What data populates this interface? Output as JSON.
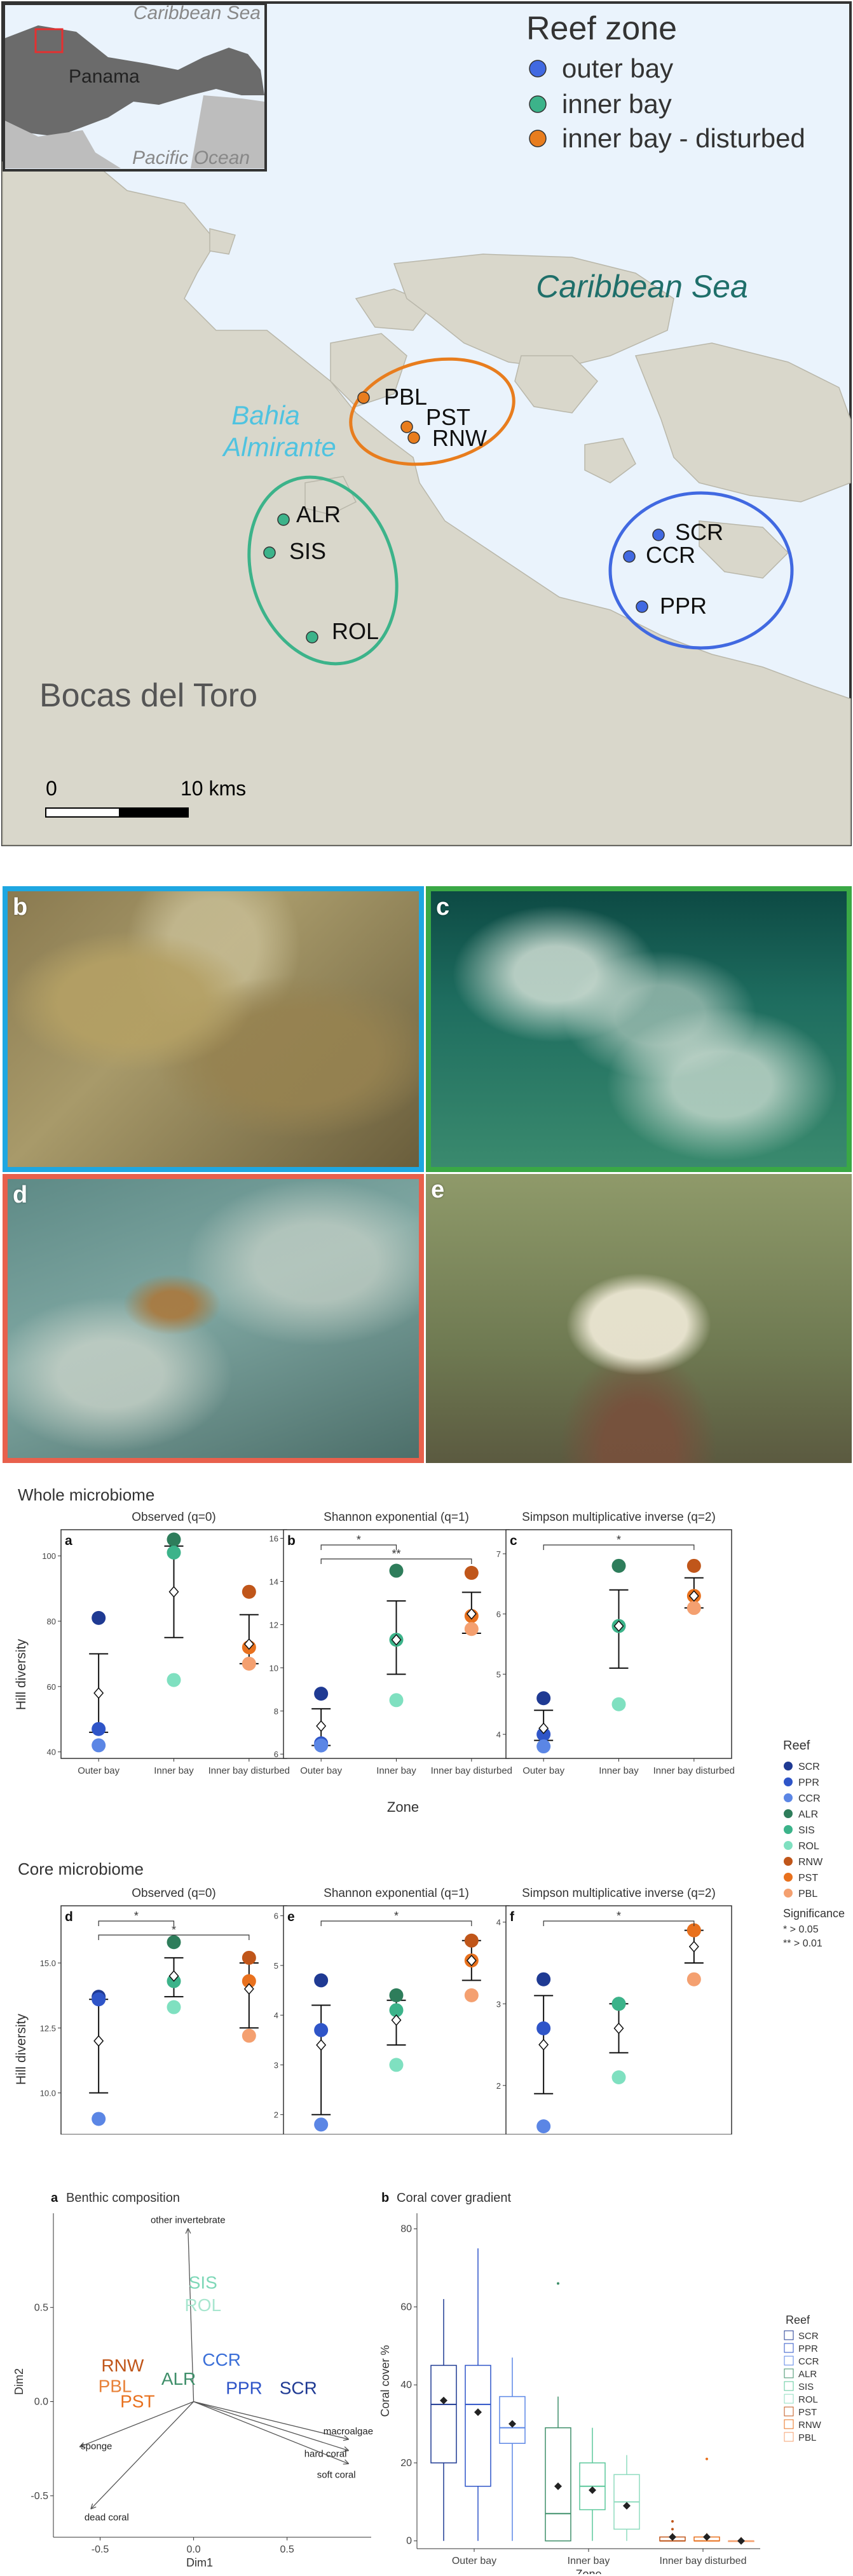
{
  "map": {
    "inset": {
      "sea_top": "Caribbean Sea",
      "country": "Panama",
      "sea_bottom": "Pacific Ocean"
    },
    "legend": {
      "title": "Reef zone",
      "items": [
        {
          "label": "outer bay",
          "color": "#4169e1"
        },
        {
          "label": "inner bay",
          "color": "#3cb38a"
        },
        {
          "label": "inner bay - disturbed",
          "color": "#e87d1e"
        }
      ]
    },
    "labels": {
      "sea": "Caribbean Sea",
      "bahia_1": "Bahia",
      "bahia_2": "Almirante",
      "region": "Bocas del Toro",
      "scale_zero": "0",
      "scale_dist": "10 kms"
    },
    "sites": [
      {
        "code": "PBL",
        "zone": "inner bay - disturbed"
      },
      {
        "code": "PST",
        "zone": "inner bay - disturbed"
      },
      {
        "code": "RNW",
        "zone": "inner bay - disturbed"
      },
      {
        "code": "ALR",
        "zone": "inner bay"
      },
      {
        "code": "SIS",
        "zone": "inner bay"
      },
      {
        "code": "ROL",
        "zone": "inner bay"
      },
      {
        "code": "SCR",
        "zone": "outer bay"
      },
      {
        "code": "CCR",
        "zone": "outer bay"
      },
      {
        "code": "PPR",
        "zone": "outer bay"
      }
    ]
  },
  "photos": {
    "b": {
      "letter": "b",
      "frame_color": "#1ea7e1"
    },
    "c": {
      "letter": "c",
      "frame_color": "#3aa845"
    },
    "d": {
      "letter": "d",
      "frame_color": "#e8604c"
    },
    "e": {
      "letter": "e",
      "frame_color": "#ffffff"
    }
  },
  "diversity": {
    "whole_title": "Whole microbiome",
    "core_title": "Core microbiome",
    "ylabel": "Hill diversity",
    "xlabel": "Zone",
    "zones": [
      "Outer bay",
      "Inner bay",
      "Inner bay disturbed"
    ],
    "legend": {
      "title": "Reef",
      "items": [
        {
          "code": "SCR",
          "color": "#1f3a93"
        },
        {
          "code": "PPR",
          "color": "#2f55c8"
        },
        {
          "code": "CCR",
          "color": "#5b86e5"
        },
        {
          "code": "ALR",
          "color": "#2e7d5b"
        },
        {
          "code": "SIS",
          "color": "#3cb38a"
        },
        {
          "code": "ROL",
          "color": "#7fe0c0"
        },
        {
          "code": "RNW",
          "color": "#c0561a"
        },
        {
          "code": "PST",
          "color": "#e8711e"
        },
        {
          "code": "PBL",
          "color": "#f4a070"
        }
      ],
      "significance_title": "Significance",
      "sig1": "*   > 0.05",
      "sig2": "** > 0.01"
    }
  },
  "chart_data": [
    {
      "type": "scatter",
      "panel": "a",
      "group": "Whole microbiome",
      "title": "Observed (q=0)",
      "categories": [
        "Outer bay",
        "Inner bay",
        "Inner bay disturbed"
      ],
      "ylim": [
        38,
        108
      ],
      "yticks": [
        40,
        60,
        80,
        100
      ],
      "points": [
        [
          81,
          47,
          42
        ],
        [
          105,
          101,
          62
        ],
        [
          89,
          72,
          67
        ]
      ],
      "mean": [
        58,
        89,
        73
      ],
      "err_low": [
        46,
        75,
        67
      ],
      "err_high": [
        70,
        103,
        82
      ],
      "significance": []
    },
    {
      "type": "scatter",
      "panel": "b",
      "group": "Whole microbiome",
      "title": "Shannon exponential (q=1)",
      "categories": [
        "Outer bay",
        "Inner bay",
        "Inner bay disturbed"
      ],
      "ylim": [
        5.8,
        16.4
      ],
      "yticks": [
        6,
        8,
        10,
        12,
        14,
        16
      ],
      "points": [
        [
          8.8,
          6.5,
          6.4
        ],
        [
          14.5,
          11.3,
          8.5
        ],
        [
          14.4,
          12.4,
          11.8
        ]
      ],
      "mean": [
        7.3,
        11.3,
        12.5
      ],
      "err_low": [
        6.4,
        9.7,
        11.6
      ],
      "err_high": [
        8.1,
        13.1,
        13.5
      ],
      "significance": [
        {
          "from": 0,
          "to": 1,
          "label": "*"
        },
        {
          "from": 0,
          "to": 2,
          "label": "**"
        }
      ]
    },
    {
      "type": "scatter",
      "panel": "c",
      "group": "Whole microbiome",
      "title": "Simpson multiplicative inverse (q=2)",
      "categories": [
        "Outer bay",
        "Inner bay",
        "Inner bay disturbed"
      ],
      "ylim": [
        3.6,
        7.4
      ],
      "yticks": [
        4,
        5,
        6,
        7
      ],
      "points": [
        [
          4.6,
          4.0,
          3.8
        ],
        [
          6.8,
          5.8,
          4.5
        ],
        [
          6.8,
          6.3,
          6.1
        ]
      ],
      "mean": [
        4.1,
        5.8,
        6.3
      ],
      "err_low": [
        3.9,
        5.1,
        6.1
      ],
      "err_high": [
        4.4,
        6.4,
        6.6
      ],
      "significance": [
        {
          "from": 0,
          "to": 2,
          "label": "*"
        }
      ]
    },
    {
      "type": "scatter",
      "panel": "d",
      "group": "Core microbiome",
      "title": "Observed (q=0)",
      "categories": [
        "Outer bay",
        "Inner bay",
        "Inner bay disturbed"
      ],
      "ylim": [
        8.4,
        17.2
      ],
      "yticks": [
        10.0,
        12.5,
        15.0
      ],
      "points": [
        [
          13.7,
          13.6,
          9.0
        ],
        [
          15.8,
          14.3,
          13.3
        ],
        [
          15.2,
          14.3,
          12.2
        ]
      ],
      "mean": [
        12.0,
        14.5,
        14.0
      ],
      "err_low": [
        10.0,
        13.7,
        12.5
      ],
      "err_high": [
        13.6,
        15.2,
        15.0
      ],
      "significance": [
        {
          "from": 0,
          "to": 1,
          "label": "*"
        },
        {
          "from": 0,
          "to": 2,
          "label": "*"
        }
      ]
    },
    {
      "type": "scatter",
      "panel": "e",
      "group": "Core microbiome",
      "title": "Shannon exponential (q=1)",
      "categories": [
        "Outer bay",
        "Inner bay",
        "Inner bay disturbed"
      ],
      "ylim": [
        1.6,
        6.2
      ],
      "yticks": [
        2,
        3,
        4,
        5,
        6
      ],
      "points": [
        [
          4.7,
          3.7,
          1.8
        ],
        [
          4.4,
          4.1,
          3.0
        ],
        [
          5.5,
          5.1,
          4.4
        ]
      ],
      "mean": [
        3.4,
        3.9,
        5.1
      ],
      "err_low": [
        2.0,
        3.4,
        4.7
      ],
      "err_high": [
        4.2,
        4.3,
        5.5
      ],
      "significance": [
        {
          "from": 0,
          "to": 2,
          "label": "*"
        }
      ]
    },
    {
      "type": "scatter",
      "panel": "f",
      "group": "Core microbiome",
      "title": "Simpson multiplicative inverse (q=2)",
      "categories": [
        "Outer bay",
        "Inner bay",
        "Inner bay disturbed"
      ],
      "ylim": [
        1.4,
        4.2
      ],
      "yticks": [
        2,
        3,
        4
      ],
      "points": [
        [
          3.3,
          2.7,
          1.5
        ],
        [
          3.0,
          3.0,
          2.1
        ],
        [
          3.9,
          3.9,
          3.3
        ]
      ],
      "mean": [
        2.5,
        2.7,
        3.7
      ],
      "err_low": [
        1.9,
        2.4,
        3.5
      ],
      "err_high": [
        3.1,
        3.0,
        3.9
      ],
      "significance": [
        {
          "from": 0,
          "to": 2,
          "label": "*"
        }
      ]
    },
    {
      "type": "scatter",
      "panel": "a",
      "title": "Benthic composition",
      "xlabel": "Dim1",
      "ylabel": "Dim2",
      "xlim": [
        -0.75,
        0.95
      ],
      "ylim": [
        -0.72,
        1.0
      ],
      "xticks": [
        -0.5,
        0.0,
        0.5
      ],
      "yticks": [
        -0.5,
        0.0,
        0.5
      ],
      "sites": [
        {
          "label": "SIS",
          "x": 0.05,
          "y": 0.6,
          "color": "#7fd8b8"
        },
        {
          "label": "ROL",
          "x": 0.05,
          "y": 0.48,
          "color": "#a8e6cf"
        },
        {
          "label": "RNW",
          "x": -0.38,
          "y": 0.16,
          "color": "#c0561a"
        },
        {
          "label": "CCR",
          "x": 0.15,
          "y": 0.19,
          "color": "#3b6fd8"
        },
        {
          "label": "ALR",
          "x": -0.08,
          "y": 0.09,
          "color": "#3f8f6a"
        },
        {
          "label": "PBL",
          "x": -0.42,
          "y": 0.05,
          "color": "#e8823a"
        },
        {
          "label": "PPR",
          "x": 0.27,
          "y": 0.04,
          "color": "#2f55c8"
        },
        {
          "label": "SCR",
          "x": 0.56,
          "y": 0.04,
          "color": "#1f3a93"
        },
        {
          "label": "PST",
          "x": -0.3,
          "y": -0.03,
          "color": "#e8711e"
        }
      ],
      "vectors": [
        {
          "label": "other invertebrate",
          "x": -0.03,
          "y": 0.92
        },
        {
          "label": "sponge",
          "x": -0.61,
          "y": -0.24
        },
        {
          "label": "dead coral",
          "x": -0.55,
          "y": -0.57
        },
        {
          "label": "macroalgae",
          "x": 0.83,
          "y": -0.2
        },
        {
          "label": "hard coral",
          "x": 0.83,
          "y": -0.26
        },
        {
          "label": "soft coral",
          "x": 0.83,
          "y": -0.33
        }
      ]
    },
    {
      "type": "box",
      "panel": "b",
      "title": "Coral cover gradient",
      "xlabel": "Zone",
      "ylabel": "Coral cover %",
      "ylim": [
        -2,
        84
      ],
      "yticks": [
        0,
        20,
        40,
        60,
        80
      ],
      "categories": [
        "Outer bay",
        "Inner bay",
        "Inner bay disturbed"
      ],
      "boxes": [
        {
          "reef": "SCR",
          "zone": 0,
          "min": 0,
          "q1": 20,
          "median": 35,
          "q3": 45,
          "max": 62,
          "mean": 36,
          "color": "#1f3a93"
        },
        {
          "reef": "PPR",
          "zone": 0,
          "min": 0,
          "q1": 14,
          "median": 35,
          "q3": 45,
          "max": 75,
          "mean": 33,
          "color": "#2f55c8"
        },
        {
          "reef": "CCR",
          "zone": 0,
          "min": 0,
          "q1": 25,
          "median": 29,
          "q3": 37,
          "max": 47,
          "mean": 30,
          "color": "#5b86e5"
        },
        {
          "reef": "ALR",
          "zone": 1,
          "min": 0,
          "q1": 0,
          "median": 7,
          "q3": 29,
          "max": 37,
          "mean": 14,
          "outliers": [
            66
          ],
          "color": "#3f8f6a"
        },
        {
          "reef": "SIS",
          "zone": 1,
          "min": 0,
          "q1": 8,
          "median": 14,
          "q3": 20,
          "max": 29,
          "mean": 13,
          "color": "#5cc89b"
        },
        {
          "reef": "ROL",
          "zone": 1,
          "min": 0,
          "q1": 3,
          "median": 10,
          "q3": 17,
          "max": 22,
          "mean": 9,
          "color": "#8fdcbf"
        },
        {
          "reef": "PST",
          "zone": 2,
          "min": 0,
          "q1": 0,
          "median": 0,
          "q3": 1,
          "max": 2,
          "mean": 1,
          "outliers": [
            3,
            5
          ],
          "color": "#c0561a"
        },
        {
          "reef": "RNW",
          "zone": 2,
          "min": 0,
          "q1": 0,
          "median": 0,
          "q3": 1,
          "max": 2,
          "mean": 1,
          "outliers": [
            21
          ],
          "color": "#e8711e"
        },
        {
          "reef": "PBL",
          "zone": 2,
          "min": 0,
          "q1": 0,
          "median": 0,
          "q3": 0,
          "max": 1,
          "mean": 0,
          "color": "#f4a070"
        }
      ],
      "legend_title": "Reef",
      "legend_items": [
        "SCR",
        "PPR",
        "CCR",
        "ALR",
        "SIS",
        "ROL",
        "PST",
        "RNW",
        "PBL"
      ]
    }
  ]
}
